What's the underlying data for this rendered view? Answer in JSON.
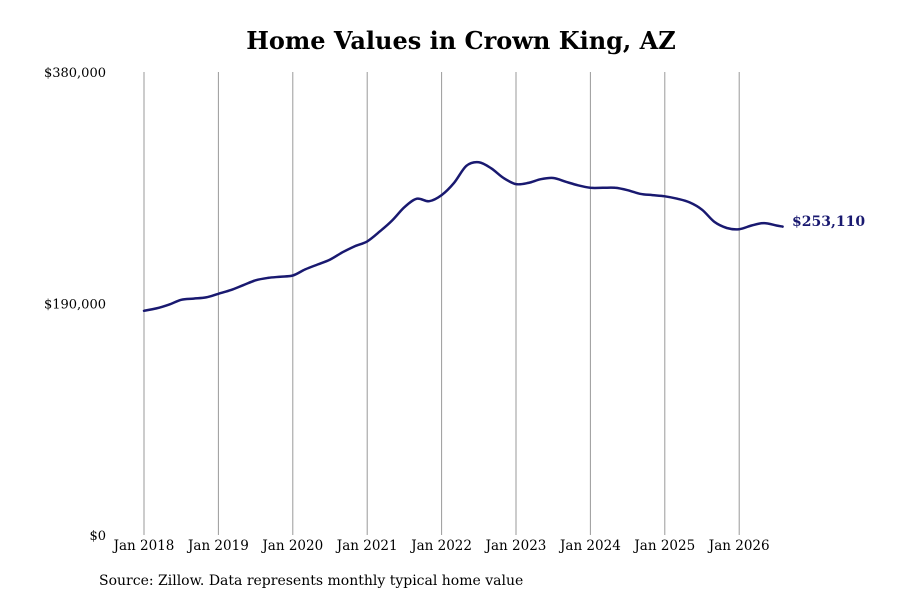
{
  "chart_data": {
    "type": "line",
    "title": "Home Values in Crown King, AZ",
    "source_note": "Source: Zillow. Data represents monthly typical home value",
    "ylim": [
      0,
      380000
    ],
    "y_ticks": [
      {
        "value": 0,
        "label": "$0"
      },
      {
        "value": 190000,
        "label": "$190,000"
      },
      {
        "value": 380000,
        "label": "$380,000"
      }
    ],
    "x_ticks": [
      "Jan 2018",
      "Jan 2019",
      "Jan 2020",
      "Jan 2021",
      "Jan 2022",
      "Jan 2023",
      "Jan 2024",
      "Jan 2025",
      "Jan 2026"
    ],
    "vertical_gridlines": true,
    "line_color": "#191970",
    "end_label": "$253,110",
    "x": [
      "2018-01",
      "2018-03",
      "2018-05",
      "2018-07",
      "2018-09",
      "2018-11",
      "2019-01",
      "2019-03",
      "2019-05",
      "2019-07",
      "2019-09",
      "2019-11",
      "2020-01",
      "2020-03",
      "2020-05",
      "2020-07",
      "2020-09",
      "2020-11",
      "2021-01",
      "2021-03",
      "2021-05",
      "2021-07",
      "2021-09",
      "2021-11",
      "2022-01",
      "2022-03",
      "2022-05",
      "2022-07",
      "2022-09",
      "2022-11",
      "2023-01",
      "2023-03",
      "2023-05",
      "2023-07",
      "2023-09",
      "2023-11",
      "2024-01",
      "2024-03",
      "2024-05",
      "2024-07",
      "2024-09",
      "2024-11",
      "2025-01",
      "2025-03",
      "2025-05",
      "2025-07",
      "2025-09",
      "2025-11",
      "2026-01",
      "2026-03",
      "2026-05",
      "2026-07",
      "2026-08"
    ],
    "series": [
      {
        "values": [
          184000,
          186000,
          189000,
          193000,
          194000,
          195000,
          198000,
          201000,
          205000,
          209000,
          211000,
          212000,
          213000,
          218000,
          222000,
          226000,
          232000,
          237000,
          241000,
          249000,
          258000,
          269000,
          276000,
          274000,
          279000,
          289000,
          303000,
          306000,
          301000,
          293000,
          288000,
          289000,
          292000,
          293000,
          290000,
          287000,
          285000,
          285000,
          285000,
          283000,
          280000,
          279000,
          278000,
          276000,
          273000,
          267000,
          257000,
          252000,
          251000,
          254000,
          256000,
          254000,
          253110
        ]
      }
    ]
  }
}
